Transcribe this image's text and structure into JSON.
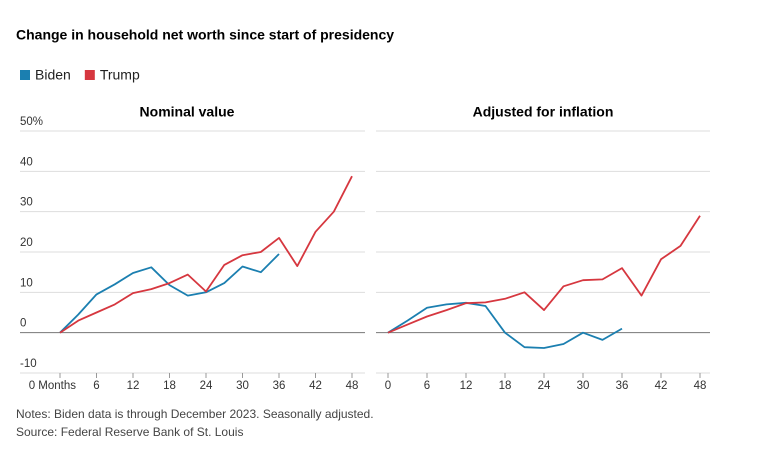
{
  "title": "Change in household net worth since start of presidency",
  "chart_data": [
    {
      "type": "line",
      "title": "Nominal value",
      "x": [
        0,
        3,
        6,
        9,
        12,
        15,
        18,
        21,
        24,
        27,
        30,
        33,
        36,
        39,
        42,
        45,
        48
      ],
      "series": [
        {
          "name": "Biden",
          "color": "#1b7fb0",
          "values": [
            0,
            4.5,
            9.5,
            12,
            14.8,
            16.2,
            11.8,
            9.2,
            10,
            12.3,
            16.4,
            15,
            19.5,
            null,
            null,
            null,
            null
          ]
        },
        {
          "name": "Trump",
          "color": "#d6373f",
          "values": [
            0,
            3,
            5,
            7,
            9.8,
            10.8,
            12.3,
            14.4,
            10.2,
            16.8,
            19.2,
            20,
            23.5,
            16.5,
            25,
            30,
            38.8
          ]
        }
      ],
      "xlim": [
        0,
        48
      ],
      "xticks": [
        {
          "value": 0,
          "label": "0 Months"
        },
        6,
        12,
        18,
        24,
        30,
        36,
        42,
        48
      ],
      "ylim": [
        -10,
        50
      ],
      "yticks": [
        -10,
        0,
        10,
        20,
        30,
        40,
        {
          "value": 50,
          "label": "50%"
        }
      ],
      "grid": true
    },
    {
      "type": "line",
      "title": "Adjusted for inflation",
      "x": [
        0,
        3,
        6,
        9,
        12,
        15,
        18,
        21,
        24,
        27,
        30,
        33,
        36,
        39,
        42,
        45,
        48
      ],
      "series": [
        {
          "color": "#1b7fb0",
          "values": [
            0,
            3,
            6.2,
            7,
            7.4,
            6.6,
            0,
            -3.6,
            -3.8,
            -2.8,
            0,
            -1.8,
            1,
            null,
            null,
            null,
            null
          ]
        },
        {
          "color": "#d6373f",
          "values": [
            0,
            2,
            4,
            5.6,
            7.3,
            7.5,
            8.4,
            10,
            5.6,
            11.5,
            13,
            13.2,
            16,
            9.2,
            18.2,
            21.5,
            29
          ]
        }
      ],
      "xlim": [
        0,
        48
      ],
      "xticks": [
        0,
        6,
        12,
        18,
        24,
        30,
        36,
        42,
        48
      ],
      "ylim": [
        -10,
        50
      ],
      "yticks": [
        -10,
        0,
        10,
        20,
        30,
        40,
        50
      ],
      "grid": true
    }
  ],
  "notes": "Notes: Biden data is through December 2023. Seasonally adjusted.",
  "source": "Source: Federal Reserve Bank of St. Louis"
}
